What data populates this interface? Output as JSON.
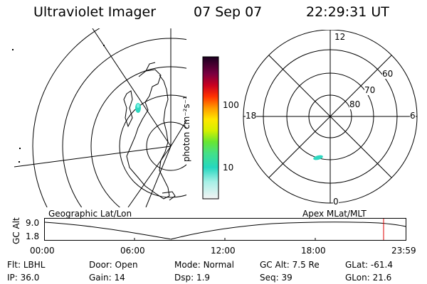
{
  "header": {
    "title": "Ultraviolet Imager",
    "date": "07 Sep 07",
    "time": "22:29:31 UT"
  },
  "map_labels": {
    "geo": "Geographic Lat/Lon",
    "apex": "Apex MLat/MLT"
  },
  "colorbar": {
    "unit_label": "photon cm⁻²s⁻¹",
    "ticks": [
      "100",
      "10"
    ]
  },
  "polar": {
    "mlt": {
      "top": "12",
      "bottom": "0",
      "left": "18",
      "right": "6"
    },
    "lat": [
      "60",
      "70",
      "80"
    ]
  },
  "altitude_plot": {
    "ylabel": "GC Alt",
    "y_ticks": [
      "9.0",
      "1.8"
    ],
    "x_ticks": [
      "00:00",
      "06:00",
      "12:00",
      "18:00",
      "23:59"
    ]
  },
  "status": {
    "row1": [
      {
        "label": "Flt:",
        "value": "LBHL"
      },
      {
        "label": "Door:",
        "value": "Open"
      },
      {
        "label": "Mode:",
        "value": "Normal"
      },
      {
        "label": "GC Alt:",
        "value": "7.5 Re"
      },
      {
        "label": "GLat:",
        "value": "-61.4"
      }
    ],
    "row2": [
      {
        "label": "IP:",
        "value": "36.0"
      },
      {
        "label": "Gain:",
        "value": "14"
      },
      {
        "label": "Dsp:",
        "value": "1.9"
      },
      {
        "label": "Seq:",
        "value": "39"
      },
      {
        "label": "GLon:",
        "value": "21.6"
      }
    ]
  },
  "colors": {
    "marker": "#e00000",
    "emission": "#2fd8c0"
  }
}
